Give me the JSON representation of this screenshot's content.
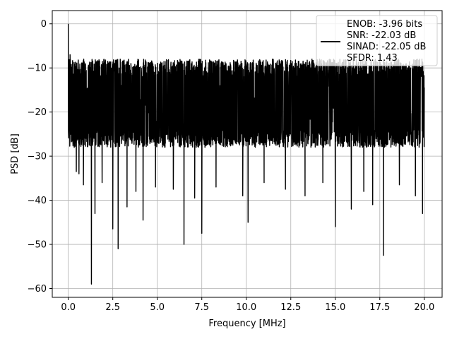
{
  "chart_data": {
    "type": "line",
    "title": "",
    "xlabel": "Frequency [MHz]",
    "ylabel": "PSD [dB]",
    "xlim": [
      -0.9,
      21.0
    ],
    "ylim": [
      -62.0,
      3.0
    ],
    "xticks": [
      0.0,
      2.5,
      5.0,
      7.5,
      10.0,
      12.5,
      15.0,
      17.5,
      20.0
    ],
    "xtick_labels": [
      "0.0",
      "2.5",
      "5.0",
      "7.5",
      "10.0",
      "12.5",
      "15.0",
      "17.5",
      "20.0"
    ],
    "yticks": [
      0,
      -10,
      -20,
      -30,
      -40,
      -50,
      -60
    ],
    "ytick_labels": [
      "0",
      "−10",
      "−20",
      "−30",
      "−40",
      "−50",
      "−60"
    ],
    "grid": true,
    "legend_position": "top-right",
    "legend_entries": [
      "ENOB: -3.96 bits",
      "SNR: -22.03 dB",
      "SINAD: -22.05 dB",
      "SFDR: 1.43"
    ],
    "series_color": "#000000",
    "series": [
      {
        "x_start": 0.0,
        "x_end": 20.0,
        "noise_floor_mean": -19,
        "noise_band": [
          -28,
          -8
        ],
        "peaks": [
          {
            "x": 0.0,
            "y": 0.0
          },
          {
            "x": 0.1,
            "y": -7.0
          },
          {
            "x": 0.15,
            "y": -25.0
          }
        ],
        "dips": [
          {
            "x": 0.45,
            "y": -33.5
          },
          {
            "x": 0.6,
            "y": -34.0
          },
          {
            "x": 0.85,
            "y": -36.5
          },
          {
            "x": 1.3,
            "y": -59.0
          },
          {
            "x": 1.5,
            "y": -43.0
          },
          {
            "x": 1.9,
            "y": -36.0
          },
          {
            "x": 2.5,
            "y": -46.5
          },
          {
            "x": 2.8,
            "y": -51.0
          },
          {
            "x": 3.3,
            "y": -41.5
          },
          {
            "x": 3.8,
            "y": -38.0
          },
          {
            "x": 4.2,
            "y": -44.5
          },
          {
            "x": 4.9,
            "y": -37.0
          },
          {
            "x": 5.9,
            "y": -37.5
          },
          {
            "x": 6.5,
            "y": -50.0
          },
          {
            "x": 7.1,
            "y": -39.5
          },
          {
            "x": 7.5,
            "y": -47.5
          },
          {
            "x": 8.3,
            "y": -37.0
          },
          {
            "x": 9.8,
            "y": -39.0
          },
          {
            "x": 10.1,
            "y": -45.0
          },
          {
            "x": 11.0,
            "y": -36.0
          },
          {
            "x": 12.2,
            "y": -37.5
          },
          {
            "x": 13.3,
            "y": -39.0
          },
          {
            "x": 14.3,
            "y": -36.0
          },
          {
            "x": 15.0,
            "y": -46.0
          },
          {
            "x": 15.9,
            "y": -42.0
          },
          {
            "x": 16.6,
            "y": -38.0
          },
          {
            "x": 17.1,
            "y": -41.0
          },
          {
            "x": 17.7,
            "y": -52.5
          },
          {
            "x": 18.6,
            "y": -36.5
          },
          {
            "x": 19.5,
            "y": -39.0
          },
          {
            "x": 19.9,
            "y": -43.0
          }
        ]
      }
    ]
  }
}
